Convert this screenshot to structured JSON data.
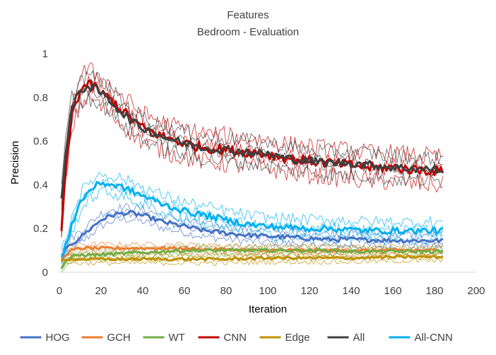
{
  "chart_data": {
    "type": "line",
    "title": "Features",
    "subtitle": "Bedroom - Evaluation",
    "xlabel": "Iteration",
    "ylabel": "Precision",
    "xlim": [
      0,
      200
    ],
    "ylim": [
      0,
      1
    ],
    "x_ticks": [
      "0",
      "20",
      "40",
      "60",
      "80",
      "100",
      "120",
      "140",
      "160",
      "180",
      "200"
    ],
    "y_ticks": [
      "0",
      "0.2",
      "0.4",
      "0.6",
      "0.8",
      "1"
    ],
    "grid": false,
    "legend_position": "bottom",
    "series": [
      {
        "name": "HOG",
        "color": "#4472C4",
        "x": [
          1,
          3,
          6,
          10,
          15,
          20,
          25,
          30,
          35,
          40,
          50,
          60,
          70,
          80,
          90,
          100,
          110,
          120,
          130,
          140,
          150,
          160,
          170,
          180,
          184
        ],
        "y": [
          0.08,
          0.1,
          0.13,
          0.16,
          0.2,
          0.24,
          0.26,
          0.27,
          0.27,
          0.26,
          0.23,
          0.21,
          0.19,
          0.18,
          0.17,
          0.165,
          0.16,
          0.155,
          0.15,
          0.15,
          0.148,
          0.146,
          0.145,
          0.145,
          0.145
        ]
      },
      {
        "name": "GCH",
        "color": "#ED7D31",
        "x": [
          1,
          3,
          6,
          10,
          15,
          20,
          30,
          40,
          50,
          60,
          70,
          80,
          90,
          100,
          110,
          120,
          130,
          140,
          150,
          160,
          170,
          180,
          184
        ],
        "y": [
          0.06,
          0.08,
          0.1,
          0.11,
          0.11,
          0.11,
          0.11,
          0.11,
          0.11,
          0.11,
          0.105,
          0.105,
          0.1,
          0.1,
          0.1,
          0.1,
          0.1,
          0.1,
          0.1,
          0.1,
          0.1,
          0.1,
          0.1
        ]
      },
      {
        "name": "WT",
        "color": "#70AD47",
        "x": [
          1,
          3,
          6,
          10,
          15,
          20,
          30,
          40,
          50,
          60,
          70,
          80,
          90,
          100,
          110,
          120,
          130,
          140,
          150,
          160,
          170,
          180,
          184
        ],
        "y": [
          0.02,
          0.05,
          0.07,
          0.08,
          0.08,
          0.08,
          0.085,
          0.09,
          0.095,
          0.1,
          0.1,
          0.1,
          0.1,
          0.1,
          0.1,
          0.1,
          0.1,
          0.095,
          0.095,
          0.095,
          0.095,
          0.095,
          0.095
        ]
      },
      {
        "name": "CNN",
        "color": "#C00000",
        "x": [
          1,
          3,
          6,
          10,
          13,
          17,
          20,
          25,
          30,
          35,
          40,
          50,
          60,
          70,
          80,
          90,
          100,
          110,
          120,
          130,
          140,
          150,
          160,
          170,
          180,
          184
        ],
        "y": [
          0.2,
          0.45,
          0.72,
          0.83,
          0.86,
          0.85,
          0.82,
          0.79,
          0.74,
          0.7,
          0.66,
          0.62,
          0.59,
          0.57,
          0.56,
          0.55,
          0.54,
          0.52,
          0.51,
          0.5,
          0.49,
          0.48,
          0.48,
          0.47,
          0.465,
          0.46
        ]
      },
      {
        "name": "Edge",
        "color": "#BF9000",
        "x": [
          1,
          3,
          6,
          10,
          20,
          30,
          40,
          60,
          80,
          100,
          120,
          140,
          160,
          180,
          184
        ],
        "y": [
          0.05,
          0.06,
          0.06,
          0.06,
          0.06,
          0.06,
          0.06,
          0.06,
          0.06,
          0.065,
          0.065,
          0.065,
          0.07,
          0.07,
          0.07
        ]
      },
      {
        "name": "All",
        "color": "#404040",
        "x": [
          1,
          3,
          6,
          10,
          13,
          17,
          20,
          25,
          30,
          35,
          40,
          50,
          60,
          70,
          80,
          90,
          100,
          110,
          120,
          130,
          140,
          150,
          160,
          170,
          180,
          184
        ],
        "y": [
          0.34,
          0.55,
          0.75,
          0.83,
          0.85,
          0.84,
          0.82,
          0.78,
          0.73,
          0.69,
          0.66,
          0.62,
          0.59,
          0.57,
          0.56,
          0.55,
          0.54,
          0.52,
          0.51,
          0.5,
          0.5,
          0.49,
          0.48,
          0.475,
          0.47,
          0.465
        ]
      },
      {
        "name": "All-CNN",
        "color": "#00B0F0",
        "x": [
          1,
          3,
          6,
          10,
          15,
          20,
          25,
          30,
          35,
          40,
          50,
          60,
          70,
          80,
          90,
          100,
          110,
          120,
          130,
          140,
          150,
          160,
          170,
          180,
          184
        ],
        "y": [
          0.06,
          0.12,
          0.22,
          0.32,
          0.38,
          0.41,
          0.4,
          0.39,
          0.37,
          0.35,
          0.31,
          0.28,
          0.26,
          0.24,
          0.22,
          0.21,
          0.205,
          0.2,
          0.2,
          0.195,
          0.19,
          0.19,
          0.19,
          0.19,
          0.19
        ]
      }
    ]
  }
}
